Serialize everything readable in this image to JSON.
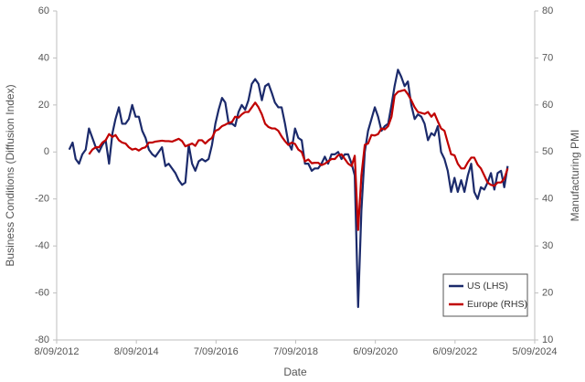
{
  "chart_data": {
    "type": "line",
    "x_label": "Date",
    "y_label": "Business Conditions (Diffusion Index)",
    "y2_label": "Manufacturing PMI",
    "xlim": [
      "2012-09-08",
      "2024-09-05"
    ],
    "xticks": [
      {
        "value": "2012-09-08",
        "label": "8/09/2012"
      },
      {
        "value": "2014-09-08",
        "label": "8/09/2014"
      },
      {
        "value": "2016-09-07",
        "label": "7/09/2016"
      },
      {
        "value": "2018-09-07",
        "label": "7/09/2018"
      },
      {
        "value": "2020-09-06",
        "label": "6/09/2020"
      },
      {
        "value": "2022-09-06",
        "label": "6/09/2022"
      },
      {
        "value": "2024-09-05",
        "label": "5/09/2024"
      }
    ],
    "ylim": [
      -80,
      60
    ],
    "yticks": [
      -80,
      -60,
      -40,
      -20,
      0,
      20,
      40,
      60
    ],
    "y2lim": [
      10,
      80
    ],
    "y2ticks": [
      10,
      20,
      30,
      40,
      50,
      60,
      70,
      80
    ],
    "legend": "lower right",
    "x": [
      "2013-01-01",
      "2013-02-01",
      "2013-03-01",
      "2013-04-01",
      "2013-05-01",
      "2013-06-01",
      "2013-07-01",
      "2013-08-01",
      "2013-09-01",
      "2013-10-01",
      "2013-11-01",
      "2013-12-01",
      "2014-01-01",
      "2014-02-01",
      "2014-03-01",
      "2014-04-01",
      "2014-05-01",
      "2014-06-01",
      "2014-07-01",
      "2014-08-01",
      "2014-09-01",
      "2014-10-01",
      "2014-11-01",
      "2014-12-01",
      "2015-01-01",
      "2015-02-01",
      "2015-03-01",
      "2015-04-01",
      "2015-05-01",
      "2015-06-01",
      "2015-07-01",
      "2015-08-01",
      "2015-09-01",
      "2015-10-01",
      "2015-11-01",
      "2015-12-01",
      "2016-01-01",
      "2016-02-01",
      "2016-03-01",
      "2016-04-01",
      "2016-05-01",
      "2016-06-01",
      "2016-07-01",
      "2016-08-01",
      "2016-09-01",
      "2016-10-01",
      "2016-11-01",
      "2016-12-01",
      "2017-01-01",
      "2017-02-01",
      "2017-03-01",
      "2017-04-01",
      "2017-05-01",
      "2017-06-01",
      "2017-07-01",
      "2017-08-01",
      "2017-09-01",
      "2017-10-01",
      "2017-11-01",
      "2017-12-01",
      "2018-01-01",
      "2018-02-01",
      "2018-03-01",
      "2018-04-01",
      "2018-05-01",
      "2018-06-01",
      "2018-07-01",
      "2018-08-01",
      "2018-09-01",
      "2018-10-01",
      "2018-11-01",
      "2018-12-01",
      "2019-01-01",
      "2019-02-01",
      "2019-03-01",
      "2019-04-01",
      "2019-05-01",
      "2019-06-01",
      "2019-07-01",
      "2019-08-01",
      "2019-09-01",
      "2019-10-01",
      "2019-11-01",
      "2019-12-01",
      "2020-01-01",
      "2020-02-01",
      "2020-03-01",
      "2020-04-01",
      "2020-05-01",
      "2020-06-01",
      "2020-07-01",
      "2020-08-01",
      "2020-09-01",
      "2020-10-01",
      "2020-11-01",
      "2020-12-01",
      "2021-01-01",
      "2021-02-01",
      "2021-03-01",
      "2021-04-01",
      "2021-05-01",
      "2021-06-01",
      "2021-07-01",
      "2021-08-01",
      "2021-09-01",
      "2021-10-01",
      "2021-11-01",
      "2021-12-01",
      "2022-01-01",
      "2022-02-01",
      "2022-03-01",
      "2022-04-01",
      "2022-05-01",
      "2022-06-01",
      "2022-07-01",
      "2022-08-01",
      "2022-09-01",
      "2022-10-01",
      "2022-11-01",
      "2022-12-01",
      "2023-01-01",
      "2023-02-01",
      "2023-03-01",
      "2023-04-01",
      "2023-05-01",
      "2023-06-01",
      "2023-07-01",
      "2023-08-01",
      "2023-09-01",
      "2023-10-01",
      "2023-11-01",
      "2023-12-01",
      "2024-01-01"
    ],
    "series": [
      {
        "name": "US (LHS)",
        "color": "#1b2a6b",
        "axis": "y",
        "values": [
          1,
          4,
          -3,
          -5,
          -1,
          1,
          10,
          6,
          2,
          0,
          3,
          5,
          -5,
          8,
          14,
          19,
          12,
          12,
          14,
          20,
          15,
          15,
          9,
          6,
          1,
          -1,
          -2,
          0,
          2,
          -6,
          -5,
          -7,
          -9,
          -12,
          -14,
          -13,
          3,
          -5,
          -8,
          -4,
          -3,
          -4,
          -3,
          3,
          12,
          18,
          23,
          21,
          12,
          12,
          11,
          17,
          20,
          18,
          22,
          29,
          31,
          29,
          22,
          28,
          29,
          25,
          21,
          19,
          19,
          12,
          4,
          1,
          10,
          6,
          5,
          -5,
          -5,
          -8,
          -7,
          -7,
          -5,
          -2,
          -5,
          -1,
          -1,
          0,
          -3,
          -1,
          -1,
          -5,
          -10,
          -66,
          -25,
          0,
          9,
          14,
          19,
          15,
          9,
          11,
          12,
          20,
          28,
          35,
          32,
          28,
          30,
          20,
          14,
          16,
          15,
          12,
          5,
          8,
          7,
          11,
          0,
          -3,
          -8,
          -17,
          -11,
          -17,
          -12,
          -17,
          -10,
          -5,
          -17,
          -20,
          -15,
          -16,
          -13,
          -9,
          -16,
          -9,
          -8,
          -15,
          -6
        ]
      },
      {
        "name": "Europe (RHS)",
        "color": "#c00000",
        "axis": "y2",
        "values": [
          null,
          null,
          null,
          null,
          null,
          null,
          49.5,
          50.5,
          51,
          51,
          52,
          52.5,
          53.8,
          53.2,
          53.6,
          52.5,
          52,
          51.8,
          51,
          50.5,
          50.7,
          50.3,
          50.8,
          51,
          52,
          52,
          52.2,
          52.3,
          52.4,
          52.3,
          52.3,
          52.2,
          52.5,
          52.8,
          52.3,
          51.2,
          51.5,
          51.8,
          51.3,
          52.5,
          52.5,
          51.8,
          52.5,
          53,
          54.5,
          54.8,
          55.5,
          55.8,
          56.2,
          56.4,
          57.5,
          57.3,
          58,
          58.5,
          58.5,
          59.5,
          60.5,
          59.5,
          58,
          56,
          55.3,
          55,
          55,
          54.5,
          53.3,
          52.3,
          51.5,
          52,
          51.7,
          50.5,
          50,
          48,
          48.4,
          47.6,
          47.7,
          47.7,
          47.2,
          47.5,
          48,
          48.5,
          48.5,
          49.3,
          49.5,
          48.5,
          47.5,
          47,
          49.2,
          33.4,
          45,
          51.5,
          51.8,
          53.6,
          53.5,
          53.8,
          55,
          54.8,
          55.5,
          57.5,
          62,
          62.8,
          63,
          63.2,
          62.3,
          61,
          59.5,
          58.5,
          58.3,
          58.1,
          58.5,
          57.5,
          58.2,
          56.5,
          55,
          54.5,
          52,
          49.5,
          49.3,
          47.5,
          46.5,
          46.5,
          47.8,
          48.8,
          48.8,
          47.3,
          46.5,
          45,
          43.5,
          43,
          42.8,
          43.5,
          43.5,
          44.3,
          46.5
        ]
      }
    ]
  }
}
